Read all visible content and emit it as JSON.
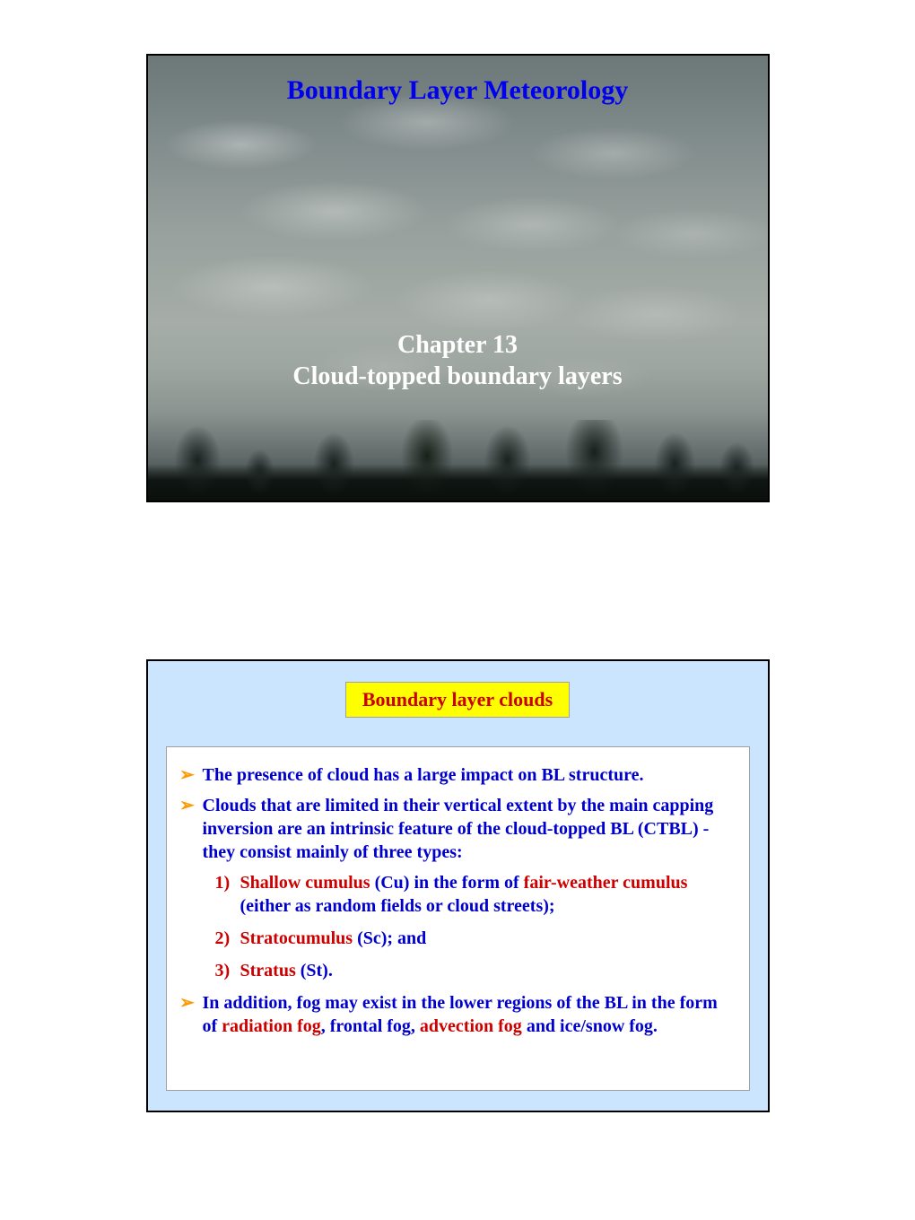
{
  "colors": {
    "page_bg": "#ffffff",
    "slide1_border": "#000000",
    "slide2_border": "#000000",
    "slide2_bg": "#cce5ff",
    "header_bg": "#ffff00",
    "header_text": "#cc0000",
    "content_bg": "#ffffff",
    "content_border": "#a0a0a0",
    "arrow": "#ff9900",
    "blue": "#0000cc",
    "red": "#cc0000",
    "title1": "#0000ee",
    "chapter": "#ffffff"
  },
  "fonts": {
    "family": "Times New Roman",
    "title1_size": 30,
    "chapter_size": 28,
    "header_size": 22,
    "body_size": 20
  },
  "slide1": {
    "title": "Boundary Layer Meteorology",
    "chapter_line1": "Chapter 13",
    "chapter_line2": "Cloud-topped boundary layers"
  },
  "slide2": {
    "header": "Boundary layer clouds",
    "bullets": [
      {
        "segments": [
          {
            "text": "The presence of cloud has a large impact on BL structure.",
            "color": "blue"
          }
        ]
      },
      {
        "segments": [
          {
            "text": "Clouds that are limited in their vertical extent by the main capping inversion are an intrinsic feature of the cloud-topped BL (CTBL) - they consist mainly of three types:",
            "color": "blue"
          }
        ]
      }
    ],
    "sublist": [
      {
        "num": "1)",
        "segments": [
          {
            "text": "Shallow cumulus ",
            "color": "red"
          },
          {
            "text": "(Cu) in the form of ",
            "color": "blue"
          },
          {
            "text": "fair-weather cumulus ",
            "color": "red"
          },
          {
            "text": "(either as random fields or cloud streets);",
            "color": "blue"
          }
        ]
      },
      {
        "num": "2)",
        "segments": [
          {
            "text": "Stratocumulus ",
            "color": "red"
          },
          {
            "text": "(Sc); and",
            "color": "blue"
          }
        ]
      },
      {
        "num": "3)",
        "segments": [
          {
            "text": "Stratus ",
            "color": "red"
          },
          {
            "text": "(St).",
            "color": "blue"
          }
        ]
      }
    ],
    "bullet3": {
      "segments": [
        {
          "text": "In addition, fog may exist in the lower regions of the BL in the form of ",
          "color": "blue"
        },
        {
          "text": "radiation fog",
          "color": "red"
        },
        {
          "text": ", ",
          "color": "blue"
        },
        {
          "text": "frontal fog, ",
          "color": "blue"
        },
        {
          "text": "advection fog ",
          "color": "red"
        },
        {
          "text": "and ice/snow fog.",
          "color": "blue"
        }
      ]
    }
  }
}
